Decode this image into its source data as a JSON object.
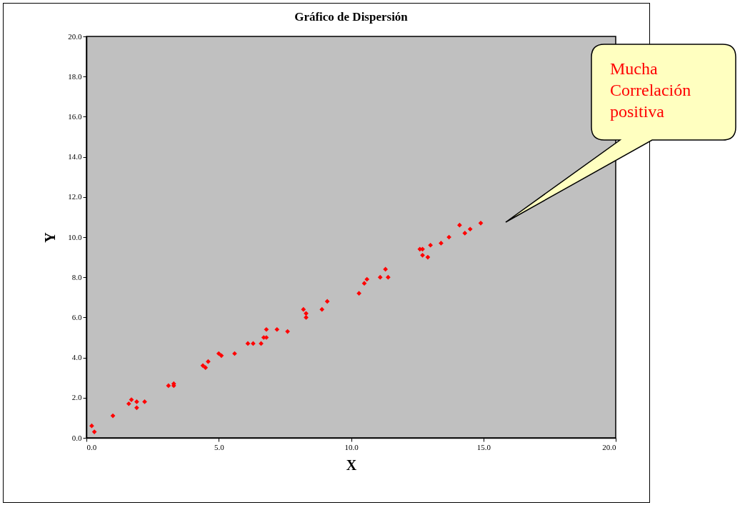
{
  "chart_data": {
    "type": "scatter",
    "title": "Gráfico de Dispersión",
    "xlabel": "X",
    "ylabel": "Y",
    "x": [
      0.2,
      0.3,
      1.0,
      1.6,
      1.7,
      1.9,
      1.9,
      2.2,
      3.1,
      3.3,
      3.3,
      4.4,
      4.5,
      4.6,
      5.0,
      5.1,
      5.6,
      6.1,
      6.3,
      6.6,
      6.7,
      6.8,
      6.8,
      7.2,
      7.6,
      8.2,
      8.3,
      8.3,
      8.9,
      9.1,
      10.3,
      10.5,
      10.6,
      11.1,
      11.3,
      11.4,
      12.6,
      12.7,
      12.7,
      12.9,
      13.0,
      13.4,
      13.7,
      14.1,
      14.3,
      14.5,
      14.9
    ],
    "series": [
      {
        "color": "#ff0000",
        "values": [
          0.6,
          0.3,
          1.1,
          1.7,
          1.9,
          1.8,
          1.5,
          1.8,
          2.6,
          2.7,
          2.6,
          3.6,
          3.5,
          3.8,
          4.2,
          4.1,
          4.2,
          4.7,
          4.7,
          4.7,
          5.0,
          5.0,
          5.4,
          5.4,
          5.3,
          6.4,
          6.2,
          6.0,
          6.4,
          6.8,
          7.2,
          7.7,
          7.9,
          8.0,
          8.4,
          8.0,
          9.4,
          9.4,
          9.1,
          9.0,
          9.6,
          9.7,
          10.0,
          10.6,
          10.2,
          10.4,
          10.7
        ]
      }
    ],
    "xlim": [
      0,
      20
    ],
    "ylim": [
      0,
      20
    ],
    "xticks": [
      {
        "value": 0,
        "label": "0.0"
      },
      {
        "value": 5,
        "label": "5.0"
      },
      {
        "value": 10,
        "label": "10.0"
      },
      {
        "value": 15,
        "label": "15.0"
      },
      {
        "value": 20,
        "label": "20.0"
      }
    ],
    "yticks": [
      {
        "value": 0,
        "label": "0.0"
      },
      {
        "value": 2,
        "label": "2.0"
      },
      {
        "value": 4,
        "label": "4.0"
      },
      {
        "value": 6,
        "label": "6.0"
      },
      {
        "value": 8,
        "label": "8.0"
      },
      {
        "value": 10,
        "label": "10.0"
      },
      {
        "value": 12,
        "label": "12.0"
      },
      {
        "value": 14,
        "label": "14.0"
      },
      {
        "value": 16,
        "label": "16.0"
      },
      {
        "value": 18,
        "label": "18.0"
      },
      {
        "value": 20,
        "label": "20.0"
      }
    ],
    "grid": false,
    "legend": false,
    "marker": "diamond",
    "annotations": [
      "Mucha Correlación positiva"
    ]
  }
}
